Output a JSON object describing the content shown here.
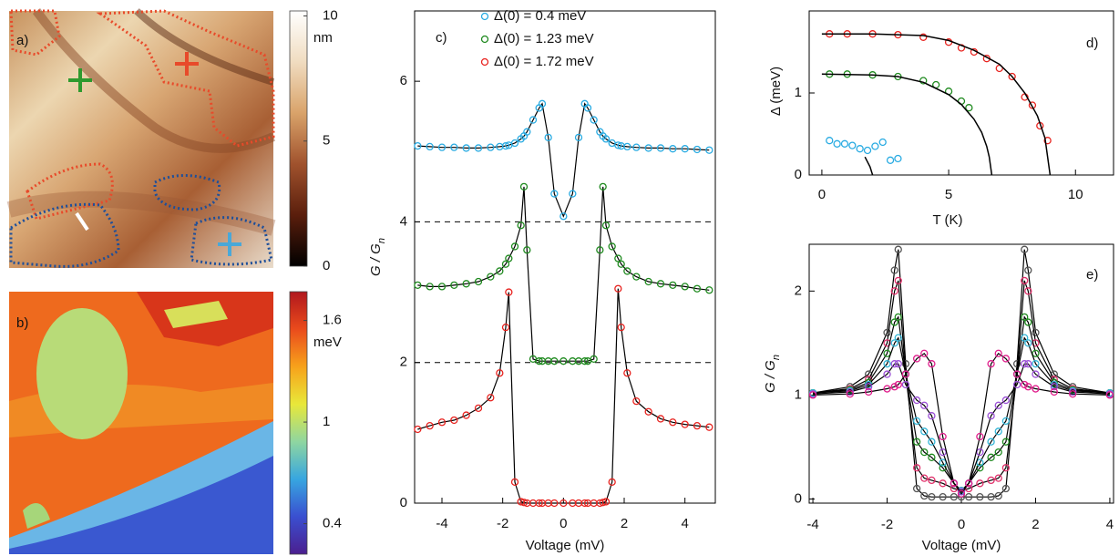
{
  "chart_data": [
    {
      "type": "image",
      "panel_label": "a)",
      "colorbar": {
        "label": "nm",
        "lim": [
          0,
          10.2
        ],
        "ticks": [
          0,
          5,
          10
        ],
        "colors": [
          "#000000",
          "#5a1e0c",
          "#a0522d",
          "#d9a36a",
          "#f0dcc0",
          "#ffffff"
        ]
      }
    },
    {
      "type": "image",
      "panel_label": "b)",
      "colorbar": {
        "label": "meV",
        "lim": [
          0.22,
          1.77
        ],
        "ticks": [
          0.4,
          1,
          1.6
        ],
        "colors": [
          "#4b1f8f",
          "#3a4fd0",
          "#37a6e0",
          "#8fd6a0",
          "#e8e83a",
          "#f7a21b",
          "#ea4b1c",
          "#b0171d"
        ]
      }
    },
    {
      "type": "scatter",
      "panel_label": "c)",
      "xlabel": "Voltage (mV)",
      "ylabel": "G / G",
      "ylabel_sub": "n",
      "xlim": [
        -4.9,
        5
      ],
      "ylim": [
        0,
        7
      ],
      "xticks": [
        -4,
        -2,
        0,
        2,
        4
      ],
      "yticks": [
        0,
        2,
        4,
        6
      ],
      "hlines": [
        2,
        4
      ],
      "legend": "upper center",
      "fit_color": "#000000",
      "x": [
        -4.8,
        -4.4,
        -4,
        -3.6,
        -3.2,
        -2.8,
        -2.4,
        -2.1,
        -1.9,
        -1.8,
        -1.6,
        -1.4,
        -1.3,
        -1.2,
        -1,
        -0.8,
        -0.7,
        -0.5,
        -0.3,
        0,
        0.3,
        0.5,
        0.7,
        0.8,
        1,
        1.2,
        1.3,
        1.4,
        1.6,
        1.8,
        1.9,
        2.1,
        2.4,
        2.8,
        3.2,
        3.6,
        4,
        4.4,
        4.8
      ],
      "series": [
        {
          "name": "Δ(0) = 0.4 meV",
          "color": "#29abe2",
          "values": [
            5.08,
            5.07,
            5.06,
            5.06,
            5.05,
            5.05,
            5.06,
            5.07,
            5.08,
            5.09,
            5.12,
            5.18,
            5.22,
            5.28,
            5.45,
            5.62,
            5.68,
            5.2,
            4.4,
            4.08,
            4.4,
            5.2,
            5.68,
            5.62,
            5.45,
            5.28,
            5.22,
            5.18,
            5.12,
            5.09,
            5.08,
            5.07,
            5.06,
            5.05,
            5.05,
            5.04,
            5.04,
            5.03,
            5.02
          ]
        },
        {
          "name": "Δ(0) = 1.23 meV",
          "color": "#1f8a1f",
          "values": [
            3.1,
            3.08,
            3.08,
            3.1,
            3.12,
            3.15,
            3.22,
            3.3,
            3.4,
            3.48,
            3.65,
            3.95,
            4.5,
            3.6,
            2.05,
            2.02,
            2.02,
            2.02,
            2.02,
            2.02,
            2.02,
            2.02,
            2.02,
            2.02,
            2.05,
            3.6,
            4.5,
            3.95,
            3.65,
            3.48,
            3.4,
            3.3,
            3.22,
            3.15,
            3.12,
            3.1,
            3.08,
            3.05,
            3.03
          ]
        },
        {
          "name": "Δ(0) = 1.72 meV",
          "color": "#e8231f",
          "values": [
            1.05,
            1.1,
            1.15,
            1.18,
            1.25,
            1.35,
            1.5,
            1.85,
            2.5,
            3.0,
            0.3,
            0.02,
            0.01,
            0,
            0,
            0,
            0,
            0,
            0,
            0,
            0,
            0,
            0,
            0,
            0,
            0,
            0.01,
            0.02,
            0.3,
            3.05,
            2.5,
            1.85,
            1.45,
            1.3,
            1.2,
            1.15,
            1.12,
            1.1,
            1.08
          ]
        }
      ]
    },
    {
      "type": "scatter",
      "panel_label": "d)",
      "xlabel": "T (K)",
      "ylabel": "Δ (meV)",
      "xlim": [
        -0.5,
        11.5
      ],
      "ylim": [
        0,
        2
      ],
      "xticks": [
        0,
        5,
        10
      ],
      "yticks": [
        0,
        1
      ],
      "series": [
        {
          "color": "#e8231f",
          "x": [
            0.3,
            1,
            2,
            3,
            4,
            5,
            5.5,
            6,
            6.5,
            7,
            7.5,
            8,
            8.3,
            8.6,
            8.9
          ],
          "values": [
            1.72,
            1.72,
            1.72,
            1.71,
            1.68,
            1.62,
            1.55,
            1.5,
            1.42,
            1.3,
            1.2,
            0.95,
            0.85,
            0.6,
            0.42
          ]
        },
        {
          "color": "#1f8a1f",
          "x": [
            0.3,
            1,
            2,
            3,
            4,
            4.5,
            5,
            5.5,
            5.8
          ],
          "values": [
            1.23,
            1.23,
            1.22,
            1.2,
            1.15,
            1.1,
            1.02,
            0.9,
            0.82
          ]
        },
        {
          "color": "#29abe2",
          "x": [
            0.3,
            0.6,
            0.9,
            1.2,
            1.5,
            1.8,
            2.1,
            2.4,
            2.7,
            3.0
          ],
          "values": [
            0.42,
            0.38,
            0.38,
            0.36,
            0.32,
            0.3,
            0.35,
            0.4,
            0.18,
            0.2
          ]
        },
        {
          "color": "#000000",
          "mode": "line",
          "x": [
            0,
            2,
            4,
            5,
            6,
            7,
            7.5,
            8,
            8.5,
            8.8,
            9
          ],
          "values": [
            1.72,
            1.72,
            1.7,
            1.64,
            1.52,
            1.35,
            1.2,
            1.0,
            0.72,
            0.45,
            0
          ]
        },
        {
          "color": "#000000",
          "mode": "line",
          "x": [
            0,
            2,
            3,
            4,
            5,
            5.5,
            6,
            6.3,
            6.5,
            6.6,
            6.7
          ],
          "values": [
            1.23,
            1.22,
            1.2,
            1.13,
            0.98,
            0.86,
            0.68,
            0.52,
            0.35,
            0.22,
            0
          ]
        },
        {
          "color": "#000000",
          "mode": "line",
          "x": [
            1.7,
            1.9,
            2.0
          ],
          "values": [
            0.22,
            0.1,
            0
          ]
        }
      ]
    },
    {
      "type": "scatter",
      "panel_label": "e)",
      "xlabel": "Voltage (mV)",
      "ylabel": "G / G",
      "ylabel_sub": "n",
      "xlim": [
        -4.1,
        4.1
      ],
      "ylim": [
        -0.04,
        2.45
      ],
      "xticks": [
        -4,
        -2,
        0,
        2,
        4
      ],
      "yticks": [
        0,
        1,
        2
      ],
      "fit_color": "#000000",
      "x": [
        -4,
        -3,
        -2.5,
        -2,
        -1.8,
        -1.7,
        -1.5,
        -1.2,
        -1,
        -0.8,
        -0.5,
        -0.2,
        0,
        0.2,
        0.5,
        0.8,
        1,
        1.2,
        1.5,
        1.7,
        1.8,
        2,
        2.5,
        3,
        4
      ],
      "series": [
        {
          "color": "#555555",
          "values": [
            1.02,
            1.08,
            1.2,
            1.6,
            2.2,
            2.4,
            1.3,
            0.1,
            0.03,
            0.02,
            0.02,
            0.02,
            0.02,
            0.02,
            0.02,
            0.02,
            0.03,
            0.1,
            1.3,
            2.4,
            2.2,
            1.6,
            1.2,
            1.08,
            1.02
          ]
        },
        {
          "color": "#e0306a",
          "values": [
            1.02,
            1.06,
            1.15,
            1.5,
            2.0,
            2.1,
            1.2,
            0.3,
            0.2,
            0.18,
            0.15,
            0.1,
            0.08,
            0.1,
            0.15,
            0.18,
            0.2,
            0.3,
            1.2,
            2.1,
            2.0,
            1.5,
            1.15,
            1.06,
            1.02
          ]
        },
        {
          "color": "#1f8a1f",
          "values": [
            1.02,
            1.05,
            1.12,
            1.4,
            1.7,
            1.75,
            1.2,
            0.55,
            0.45,
            0.4,
            0.3,
            0.15,
            0.08,
            0.15,
            0.3,
            0.4,
            0.45,
            0.55,
            1.2,
            1.75,
            1.7,
            1.4,
            1.12,
            1.05,
            1.02
          ]
        },
        {
          "color": "#33b5d6",
          "values": [
            1.02,
            1.04,
            1.1,
            1.3,
            1.5,
            1.55,
            1.2,
            0.75,
            0.65,
            0.55,
            0.35,
            0.15,
            0.08,
            0.15,
            0.35,
            0.55,
            0.65,
            0.75,
            1.2,
            1.55,
            1.5,
            1.3,
            1.1,
            1.04,
            1.02
          ]
        },
        {
          "color": "#9b4fd6",
          "values": [
            1.01,
            1.03,
            1.08,
            1.2,
            1.3,
            1.3,
            1.1,
            0.95,
            0.9,
            0.8,
            0.45,
            0.15,
            0.07,
            0.15,
            0.45,
            0.8,
            0.9,
            0.95,
            1.1,
            1.3,
            1.3,
            1.2,
            1.08,
            1.03,
            1.01
          ]
        },
        {
          "color": "#e01e8c",
          "values": [
            1.0,
            1.01,
            1.03,
            1.06,
            1.08,
            1.1,
            1.2,
            1.35,
            1.4,
            1.3,
            0.6,
            0.15,
            0.05,
            0.15,
            0.6,
            1.3,
            1.4,
            1.35,
            1.2,
            1.1,
            1.08,
            1.06,
            1.03,
            1.01,
            1.0
          ]
        }
      ]
    }
  ]
}
